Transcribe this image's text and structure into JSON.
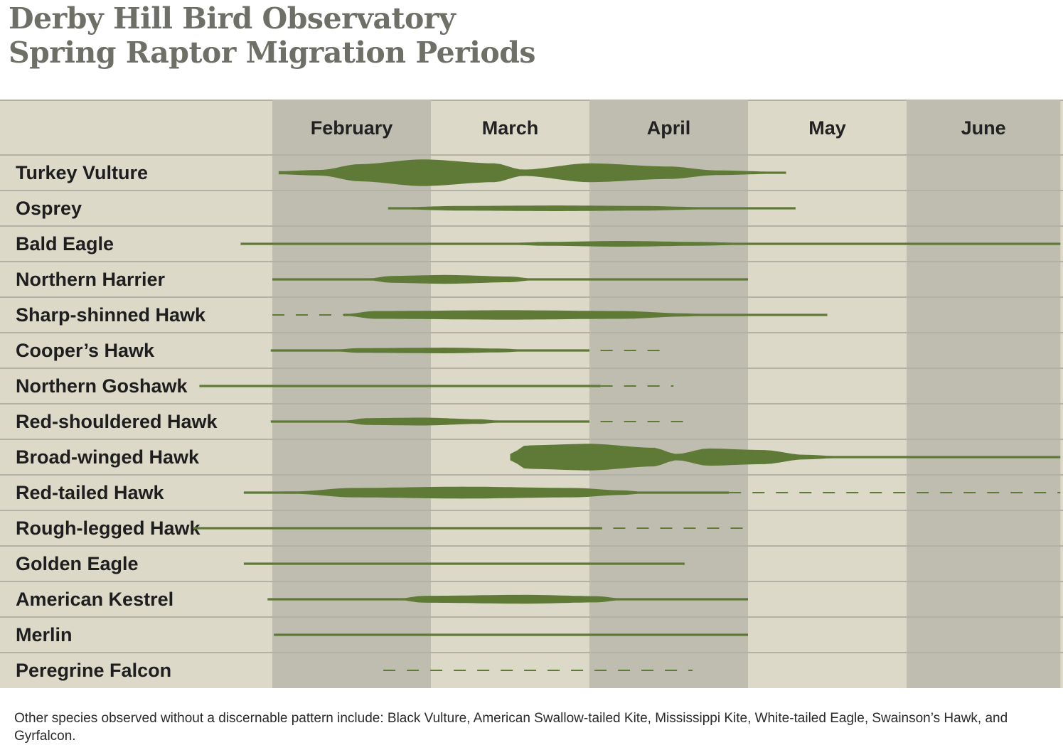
{
  "title": {
    "line1": "Derby Hill Bird Observatory",
    "line2": "Spring Raptor Migration Periods"
  },
  "footnote": "Other species observed without a discernable pattern include: Black Vulture, American Swallow-tailed Kite, Mississippi Kite, White-tailed Eagle, Swainson’s Hawk, and Gyrfalcon.",
  "colors": {
    "band": "#5f7a37",
    "bg_light": "#dcd9c8",
    "bg_dark": "#bebdb0",
    "grid": "#b2b1a6",
    "title": "#6e6f66"
  },
  "chart_data": {
    "type": "timeline",
    "title": "Derby Hill Bird Observatory Spring Raptor Migration Periods",
    "x_unit": "month position (1.0 = start of February, 6.0 = start of July)",
    "xlim": [
      1.0,
      5.97
    ],
    "months": [
      "February",
      "March",
      "April",
      "May",
      "June"
    ],
    "series": [
      {
        "name": "Turkey Vulture",
        "solid": [
          1.04,
          4.24
        ],
        "dashed": [],
        "profile": [
          [
            1.04,
            0.1
          ],
          [
            1.3,
            0.18
          ],
          [
            1.55,
            0.55
          ],
          [
            1.95,
            0.85
          ],
          [
            2.4,
            0.6
          ],
          [
            2.58,
            0.2
          ],
          [
            3.0,
            0.6
          ],
          [
            3.5,
            0.4
          ],
          [
            3.8,
            0.15
          ],
          [
            4.24,
            0.05
          ]
        ]
      },
      {
        "name": "Osprey",
        "solid": [
          1.73,
          4.3
        ],
        "dashed": [],
        "profile": [
          [
            1.73,
            0.05
          ],
          [
            2.2,
            0.15
          ],
          [
            2.8,
            0.18
          ],
          [
            3.3,
            0.15
          ],
          [
            3.8,
            0.06
          ],
          [
            4.3,
            0.04
          ]
        ]
      },
      {
        "name": "Bald Eagle",
        "solid": [
          0.8,
          5.97
        ],
        "dashed": [],
        "profile": [
          [
            0.8,
            0.04
          ],
          [
            2.5,
            0.05
          ],
          [
            2.7,
            0.12
          ],
          [
            3.2,
            0.18
          ],
          [
            3.7,
            0.12
          ],
          [
            4.0,
            0.05
          ],
          [
            5.97,
            0.04
          ]
        ]
      },
      {
        "name": "Northern Harrier",
        "solid": [
          1.0,
          4.0
        ],
        "dashed": [],
        "profile": [
          [
            1.0,
            0.04
          ],
          [
            1.6,
            0.05
          ],
          [
            1.75,
            0.22
          ],
          [
            2.1,
            0.28
          ],
          [
            2.5,
            0.18
          ],
          [
            2.65,
            0.05
          ],
          [
            4.0,
            0.04
          ]
        ]
      },
      {
        "name": "Sharp-shinned Hawk",
        "solid": [
          1.45,
          4.5
        ],
        "dashed": [
          [
            1.0,
            1.45
          ]
        ],
        "profile": [
          [
            1.45,
            0.05
          ],
          [
            1.65,
            0.25
          ],
          [
            2.5,
            0.3
          ],
          [
            3.2,
            0.25
          ],
          [
            3.6,
            0.1
          ],
          [
            3.75,
            0.05
          ],
          [
            4.5,
            0.04
          ]
        ]
      },
      {
        "name": "Cooper’s Hawk",
        "solid": [
          0.99,
          3.0
        ],
        "dashed": [
          [
            3.07,
            3.47
          ]
        ],
        "profile": [
          [
            0.99,
            0.04
          ],
          [
            1.4,
            0.06
          ],
          [
            1.55,
            0.15
          ],
          [
            2.1,
            0.18
          ],
          [
            2.45,
            0.12
          ],
          [
            2.6,
            0.05
          ],
          [
            3.0,
            0.04
          ]
        ]
      },
      {
        "name": "Northern Goshawk",
        "solid": [
          0.54,
          3.07
        ],
        "dashed": [
          [
            3.07,
            3.53
          ]
        ],
        "profile": [
          [
            0.54,
            0.03
          ],
          [
            3.07,
            0.03
          ]
        ]
      },
      {
        "name": "Red-shouldered Hawk",
        "solid": [
          0.99,
          3.0
        ],
        "dashed": [
          [
            3.07,
            3.6
          ]
        ],
        "profile": [
          [
            0.99,
            0.04
          ],
          [
            1.45,
            0.06
          ],
          [
            1.6,
            0.22
          ],
          [
            1.95,
            0.25
          ],
          [
            2.3,
            0.15
          ],
          [
            2.45,
            0.05
          ],
          [
            3.0,
            0.04
          ]
        ]
      },
      {
        "name": "Broad-winged Hawk",
        "solid": [
          2.5,
          5.97
        ],
        "dashed": [],
        "profile": [
          [
            2.5,
            0.2
          ],
          [
            2.6,
            0.75
          ],
          [
            3.0,
            0.85
          ],
          [
            3.4,
            0.6
          ],
          [
            3.55,
            0.2
          ],
          [
            3.75,
            0.55
          ],
          [
            4.1,
            0.45
          ],
          [
            4.35,
            0.15
          ],
          [
            4.6,
            0.05
          ],
          [
            5.97,
            0.05
          ]
        ]
      },
      {
        "name": "Red-tailed Hawk",
        "solid": [
          0.82,
          3.88
        ],
        "dashed": [
          [
            3.88,
            5.97
          ]
        ],
        "profile": [
          [
            0.82,
            0.05
          ],
          [
            1.15,
            0.08
          ],
          [
            1.5,
            0.3
          ],
          [
            2.2,
            0.38
          ],
          [
            2.9,
            0.3
          ],
          [
            3.2,
            0.15
          ],
          [
            3.35,
            0.05
          ],
          [
            3.88,
            0.04
          ]
        ]
      },
      {
        "name": "Rough-legged Hawk",
        "solid": [
          0.5,
          3.08
        ],
        "dashed": [
          [
            3.15,
            4.0
          ]
        ],
        "profile": [
          [
            0.5,
            0.06
          ],
          [
            3.08,
            0.06
          ]
        ]
      },
      {
        "name": "Golden Eagle",
        "solid": [
          0.82,
          3.6
        ],
        "dashed": [],
        "profile": [
          [
            0.82,
            0.03
          ],
          [
            3.6,
            0.03
          ]
        ]
      },
      {
        "name": "American Kestrel",
        "solid": [
          0.97,
          4.0
        ],
        "dashed": [],
        "profile": [
          [
            0.97,
            0.04
          ],
          [
            1.8,
            0.05
          ],
          [
            1.95,
            0.22
          ],
          [
            2.6,
            0.28
          ],
          [
            3.05,
            0.2
          ],
          [
            3.2,
            0.05
          ],
          [
            4.0,
            0.04
          ]
        ]
      },
      {
        "name": "Merlin",
        "solid": [
          1.01,
          4.0
        ],
        "dashed": [],
        "profile": [
          [
            1.01,
            0.03
          ],
          [
            2.8,
            0.04
          ],
          [
            4.0,
            0.03
          ]
        ]
      },
      {
        "name": "Peregrine Falcon",
        "solid": [],
        "dashed": [
          [
            1.7,
            3.65
          ]
        ],
        "profile": []
      }
    ]
  }
}
